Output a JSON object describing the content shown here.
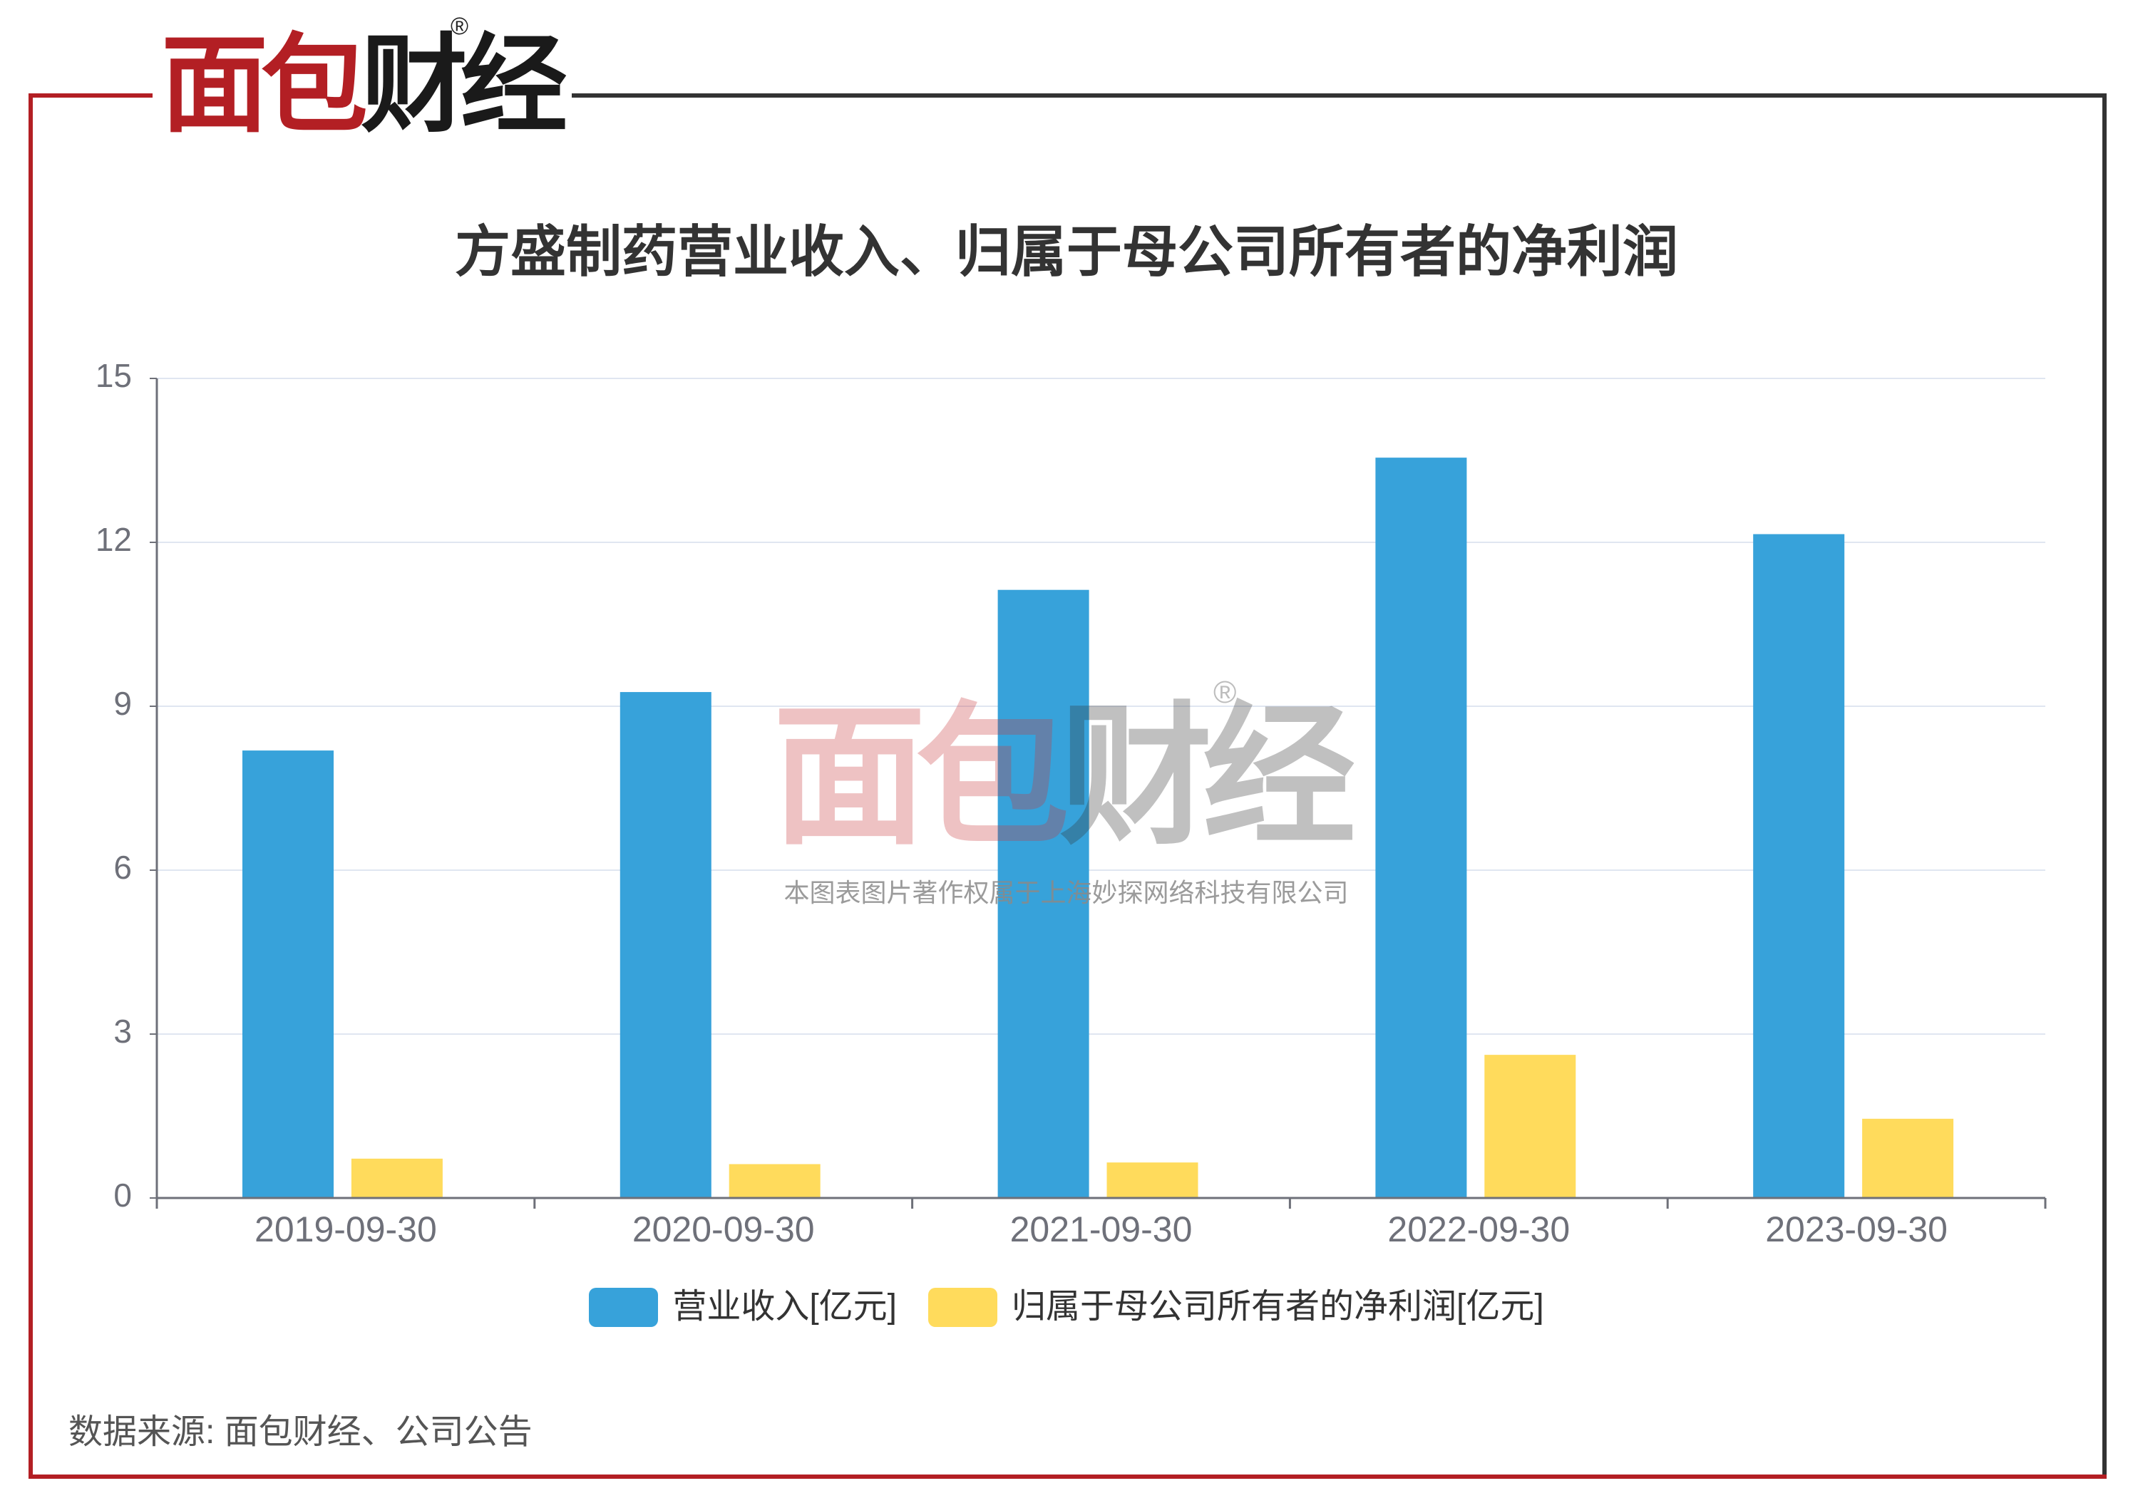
{
  "brand": {
    "logo_red": "面包",
    "logo_black": "财经",
    "registered": "®"
  },
  "watermark": {
    "logo_red": "面包",
    "logo_black": "财经",
    "registered": "®",
    "copyright": "本图表图片著作权属于上海妙探网络科技有限公司"
  },
  "source_note": "数据来源: 面包财经、公司公告",
  "colors": {
    "brand_red": "#b31f24",
    "frame_dark": "#333333",
    "grid": "#e0e6f1",
    "axis": "#6e7079",
    "title": "#333333"
  },
  "chart_data": {
    "type": "bar",
    "title": "方盛制药营业收入、归属于母公司所有者的净利润",
    "categories": [
      "2019-09-30",
      "2020-09-30",
      "2021-09-30",
      "2022-09-30",
      "2023-09-30"
    ],
    "series": [
      {
        "name": "营业收入[亿元]",
        "values": [
          8.19,
          9.26,
          11.13,
          13.55,
          12.15
        ],
        "color": "#37A2DA"
      },
      {
        "name": "归属于母公司所有者的净利润[亿元]",
        "values": [
          0.72,
          0.62,
          0.65,
          2.62,
          1.45
        ],
        "color": "#FFDB5C"
      }
    ],
    "ylim": [
      0,
      15
    ],
    "yticks": [
      0,
      3,
      6,
      9,
      12,
      15
    ],
    "grid": true,
    "legend": "bottom-center"
  }
}
